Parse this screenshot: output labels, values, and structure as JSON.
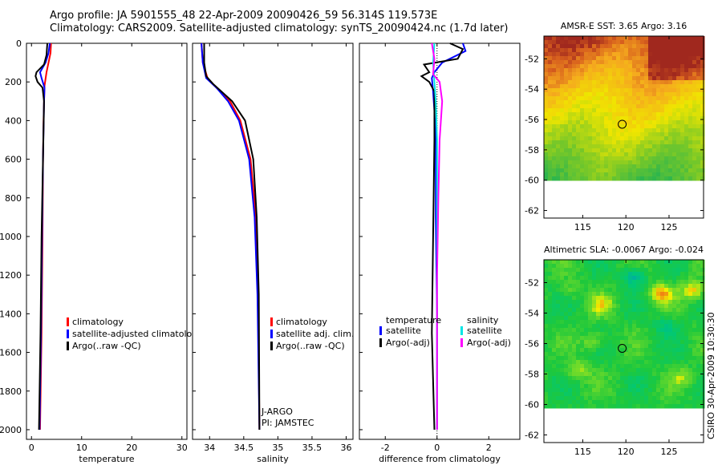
{
  "header": {
    "line1": "Argo profile: JA 5901555_48 22-Apr-2009 20090426_59 56.314S 119.573E",
    "line2": "Climatology: CARS2009. Satellite-adjusted climatology: synTS_20090424.nc (1.7d later)"
  },
  "footer": {
    "stamp": "CSIRO 30-Apr-2009 10:30:30"
  },
  "colors": {
    "climatology": "#ff0000",
    "satellite": "#0000ff",
    "argo": "#000000",
    "sat_sal": "#00e5e5",
    "argo_sal": "#ff00ff"
  },
  "chart_data": [
    {
      "type": "line",
      "id": "temperature",
      "xlabel": "temperature",
      "ylabel": "",
      "xlim": [
        -1,
        31
      ],
      "ylim": [
        2050,
        0
      ],
      "xticks": [
        0,
        10,
        20,
        30
      ],
      "yticks": [
        0,
        200,
        400,
        600,
        800,
        1000,
        1200,
        1400,
        1600,
        1800,
        2000
      ],
      "legend": [
        "climatology",
        "satellite-adjusted climatology",
        "Argo(..raw -QC)"
      ],
      "series": [
        {
          "name": "climatology",
          "color": "#ff0000",
          "x": [
            3.9,
            3.8,
            3.4,
            3.0,
            2.6,
            2.5,
            2.4,
            2.3,
            2.2,
            2.0,
            1.7
          ],
          "y": [
            0,
            50,
            100,
            150,
            220,
            300,
            400,
            600,
            1000,
            1500,
            2000
          ]
        },
        {
          "name": "satellite-adjusted climatology",
          "color": "#0000ff",
          "x": [
            3.65,
            3.4,
            2.8,
            1.7,
            2.0,
            2.6,
            2.5,
            2.3,
            2.1,
            1.9,
            1.6
          ],
          "y": [
            0,
            50,
            100,
            150,
            180,
            230,
            300,
            600,
            1000,
            1500,
            2000
          ]
        },
        {
          "name": "Argo(..raw -QC)",
          "color": "#000000",
          "x": [
            3.16,
            3.0,
            2.5,
            1.0,
            0.8,
            1.2,
            2.2,
            2.5,
            2.3,
            2.0,
            1.8,
            1.5
          ],
          "y": [
            0,
            60,
            110,
            150,
            170,
            200,
            230,
            300,
            600,
            1000,
            1500,
            2000
          ]
        }
      ]
    },
    {
      "type": "line",
      "id": "salinity",
      "xlabel": "salinity",
      "ylabel": "",
      "xlim": [
        33.75,
        36.1
      ],
      "ylim": [
        2050,
        0
      ],
      "xticks": [
        34,
        34.5,
        35,
        35.5,
        36
      ],
      "xticklabels": [
        "34",
        "34.5",
        "35",
        "35.5",
        "36"
      ],
      "legend": [
        "climatology",
        "satellite adj. clim.",
        "Argo(..raw -QC)"
      ],
      "notes": [
        "J-ARGO",
        "PI: JAMSTEC"
      ],
      "series": [
        {
          "name": "climatology",
          "color": "#ff0000",
          "x": [
            33.88,
            33.9,
            33.97,
            34.1,
            34.3,
            34.45,
            34.6,
            34.68,
            34.71,
            34.73
          ],
          "y": [
            0,
            100,
            180,
            230,
            300,
            400,
            600,
            900,
            1300,
            2000
          ]
        },
        {
          "name": "satellite adj. clim.",
          "color": "#0000ff",
          "x": [
            33.88,
            33.9,
            33.95,
            34.1,
            34.27,
            34.43,
            34.58,
            34.66,
            34.7,
            34.73
          ],
          "y": [
            0,
            100,
            180,
            230,
            300,
            400,
            600,
            900,
            1300,
            2000
          ]
        },
        {
          "name": "Argo(..raw -QC)",
          "color": "#000000",
          "x": [
            33.92,
            33.92,
            33.95,
            34.05,
            34.33,
            34.52,
            34.64,
            34.69,
            34.72,
            34.73
          ],
          "y": [
            0,
            100,
            170,
            210,
            300,
            400,
            600,
            900,
            1300,
            2000
          ]
        }
      ]
    },
    {
      "type": "line",
      "id": "difference",
      "xlabel": "difference from climatology",
      "ylabel": "",
      "xlim": [
        -3,
        3.2
      ],
      "ylim": [
        2050,
        0
      ],
      "xticks": [
        -2,
        0,
        2
      ],
      "legend_headers": [
        "temperature",
        "salinity"
      ],
      "legend": [
        "satellite",
        "Argo(-adj)",
        "satellite",
        "Argo(-adj)"
      ],
      "series": [
        {
          "name": "temperature satellite",
          "color": "#0000ff",
          "x": [
            1.0,
            1.1,
            0.2,
            -0.1,
            -0.2,
            -0.15,
            -0.1,
            -0.05,
            -0.05,
            0.0,
            0.0
          ],
          "y": [
            0,
            40,
            100,
            150,
            180,
            250,
            350,
            500,
            900,
            1400,
            2000
          ]
        },
        {
          "name": "temperature Argo(-adj)",
          "color": "#000000",
          "x": [
            0.5,
            1.0,
            0.8,
            -0.5,
            -0.3,
            -0.6,
            -0.3,
            -0.1,
            -0.1,
            -0.2,
            -0.1
          ],
          "y": [
            0,
            30,
            80,
            110,
            150,
            170,
            200,
            250,
            500,
            1500,
            2000
          ]
        },
        {
          "name": "salinity satellite",
          "color": "#00e5e5",
          "x": [
            -0.1,
            -0.15,
            -0.1,
            -0.05,
            0.0,
            0.0,
            0.0
          ],
          "y": [
            0,
            100,
            200,
            300,
            500,
            1000,
            2000
          ]
        },
        {
          "name": "salinity Argo(-adj)",
          "color": "#ff00ff",
          "x": [
            -0.2,
            -0.1,
            -0.15,
            0.1,
            0.2,
            0.1,
            0.05,
            0.0,
            0.0
          ],
          "y": [
            0,
            80,
            160,
            200,
            300,
            500,
            800,
            1200,
            2000
          ]
        }
      ]
    },
    {
      "type": "heatmap",
      "id": "sst_map",
      "title": "AMSR-E SST: 3.65  Argo: 3.16",
      "xlim": [
        110.5,
        129
      ],
      "ylim": [
        -62.5,
        -50.5
      ],
      "xticks": [
        115,
        120,
        125
      ],
      "yticks": [
        -52,
        -54,
        -56,
        -58,
        -60,
        -62
      ],
      "data_extent_lat": [
        -60,
        -50.5
      ],
      "marker": {
        "lon": 119.573,
        "lat": -56.314
      }
    },
    {
      "type": "heatmap",
      "id": "sla_map",
      "title": "Altimetric SLA: -0.0067  Argo: -0.024",
      "xlim": [
        110.5,
        129
      ],
      "ylim": [
        -62.5,
        -50.5
      ],
      "xticks": [
        115,
        120,
        125
      ],
      "yticks": [
        -52,
        -54,
        -56,
        -58,
        -60,
        -62
      ],
      "data_extent_lat": [
        -60,
        -50.5
      ],
      "marker": {
        "lon": 119.573,
        "lat": -56.314
      }
    }
  ]
}
